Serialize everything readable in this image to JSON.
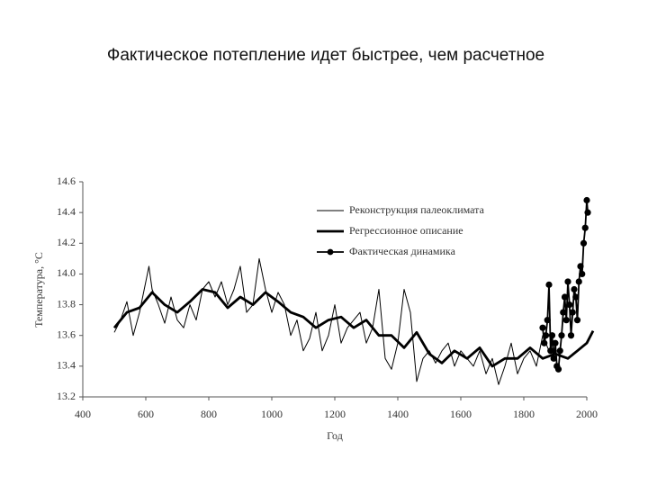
{
  "chart_data": {
    "type": "line",
    "title": "Фактическое потепление идет быстрее, чем расчетное",
    "x_label": "Год",
    "y_label": "Температура, °C",
    "xlim": [
      400,
      2000
    ],
    "xticks": [
      400,
      600,
      800,
      1000,
      1200,
      1400,
      1600,
      1800,
      2000
    ],
    "ylim": [
      13.2,
      14.6
    ],
    "yticks": [
      13.2,
      13.4,
      13.6,
      13.8,
      {
        "value": 14,
        "label": "14.0"
      },
      14.2,
      14.4,
      14.6
    ],
    "legend": "top-right",
    "series": [
      {
        "name": "Реконструкция палеоклимата",
        "color": "#000000",
        "style": "thin",
        "x": [
          500,
          520,
          540,
          560,
          580,
          600,
          610,
          620,
          640,
          660,
          680,
          700,
          720,
          740,
          760,
          780,
          800,
          820,
          840,
          860,
          880,
          900,
          920,
          940,
          960,
          980,
          1000,
          1020,
          1040,
          1060,
          1080,
          1100,
          1120,
          1140,
          1160,
          1180,
          1200,
          1220,
          1240,
          1260,
          1280,
          1300,
          1320,
          1340,
          1360,
          1380,
          1400,
          1420,
          1440,
          1460,
          1480,
          1500,
          1520,
          1540,
          1560,
          1580,
          1600,
          1620,
          1640,
          1660,
          1680,
          1700,
          1720,
          1740,
          1760,
          1780,
          1800,
          1820,
          1840,
          1860,
          1880
        ],
        "values": [
          13.62,
          13.7,
          13.82,
          13.6,
          13.75,
          13.95,
          14.05,
          13.9,
          13.8,
          13.68,
          13.85,
          13.7,
          13.65,
          13.8,
          13.7,
          13.9,
          13.95,
          13.85,
          13.95,
          13.8,
          13.9,
          14.05,
          13.75,
          13.8,
          14.1,
          13.9,
          13.75,
          13.88,
          13.8,
          13.6,
          13.7,
          13.5,
          13.58,
          13.75,
          13.5,
          13.6,
          13.8,
          13.55,
          13.65,
          13.7,
          13.75,
          13.55,
          13.65,
          13.9,
          13.45,
          13.38,
          13.55,
          13.9,
          13.75,
          13.3,
          13.45,
          13.5,
          13.42,
          13.5,
          13.55,
          13.4,
          13.5,
          13.45,
          13.4,
          13.5,
          13.35,
          13.45,
          13.28,
          13.4,
          13.55,
          13.35,
          13.45,
          13.5,
          13.4,
          13.6,
          13.5
        ]
      },
      {
        "name": "Регрессионное описание",
        "color": "#000000",
        "style": "thick",
        "x": [
          500,
          540,
          580,
          620,
          660,
          700,
          740,
          780,
          820,
          860,
          900,
          940,
          980,
          1020,
          1060,
          1100,
          1140,
          1180,
          1220,
          1260,
          1300,
          1340,
          1380,
          1420,
          1460,
          1500,
          1540,
          1580,
          1620,
          1660,
          1700,
          1740,
          1780,
          1820,
          1860,
          1900,
          1940,
          1970,
          2000,
          2020
        ],
        "values": [
          13.65,
          13.75,
          13.78,
          13.88,
          13.8,
          13.75,
          13.82,
          13.9,
          13.88,
          13.78,
          13.85,
          13.8,
          13.88,
          13.82,
          13.75,
          13.72,
          13.65,
          13.7,
          13.72,
          13.65,
          13.7,
          13.6,
          13.6,
          13.52,
          13.62,
          13.48,
          13.42,
          13.5,
          13.45,
          13.52,
          13.4,
          13.45,
          13.45,
          13.52,
          13.45,
          13.48,
          13.45,
          13.5,
          13.55,
          13.63
        ]
      },
      {
        "name": "Фактическая динамика",
        "color": "#000000",
        "style": "dots",
        "x": [
          1860,
          1865,
          1870,
          1875,
          1880,
          1885,
          1890,
          1895,
          1900,
          1905,
          1910,
          1915,
          1920,
          1925,
          1930,
          1935,
          1940,
          1945,
          1950,
          1955,
          1960,
          1965,
          1970,
          1975,
          1980,
          1985,
          1990,
          1995,
          2000,
          2003
        ],
        "values": [
          13.65,
          13.55,
          13.6,
          13.7,
          13.93,
          13.5,
          13.6,
          13.45,
          13.55,
          13.4,
          13.38,
          13.5,
          13.6,
          13.75,
          13.85,
          13.7,
          13.95,
          13.8,
          13.6,
          13.75,
          13.9,
          13.85,
          13.7,
          13.95,
          14.05,
          14.0,
          14.2,
          14.3,
          14.48,
          14.4
        ]
      }
    ]
  }
}
